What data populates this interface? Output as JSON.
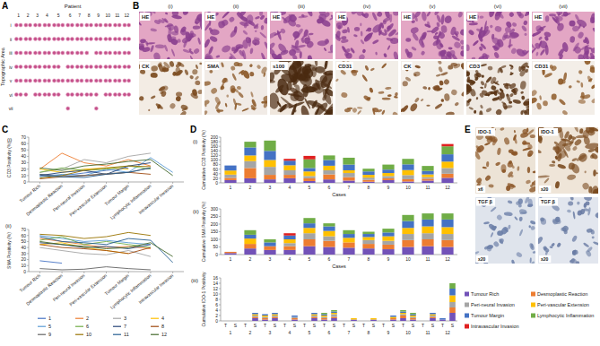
{
  "panel_labels": [
    "A",
    "B",
    "C",
    "D",
    "E"
  ],
  "tma": {
    "title": "Patient",
    "row_axis": "Topographic Area",
    "patients": [
      "1",
      "2",
      "3",
      "4",
      "5",
      "6",
      "7",
      "8",
      "9",
      "10",
      "11",
      "12"
    ],
    "rows": [
      "i",
      "ii",
      "iii",
      "iv",
      "v",
      "vi",
      "vii"
    ],
    "cores": [
      [
        2,
        2,
        2,
        2,
        3,
        2,
        2,
        2,
        2,
        2,
        2,
        2
      ],
      [
        2,
        2,
        2,
        2,
        3,
        2,
        2,
        2,
        2,
        2,
        2,
        2
      ],
      [
        2,
        2,
        2,
        2,
        3,
        2,
        2,
        1,
        2,
        2,
        2,
        2
      ],
      [
        2,
        2,
        2,
        2,
        2,
        2,
        2,
        2,
        2,
        2,
        2,
        2
      ],
      [
        2,
        2,
        2,
        2,
        3,
        2,
        2,
        2,
        2,
        2,
        2,
        2
      ],
      [
        2,
        1,
        2,
        2,
        2,
        2,
        2,
        2,
        1,
        2,
        2,
        2
      ],
      [
        0,
        0,
        0,
        0,
        0,
        1,
        0,
        0,
        1,
        0,
        0,
        0
      ]
    ]
  },
  "histology": [
    {
      "label": "(i)",
      "top": "HE",
      "bottom": "CK"
    },
    {
      "label": "(ii)",
      "top": "HE",
      "bottom": "SMA"
    },
    {
      "label": "(iii)",
      "top": "HE",
      "bottom": "s100"
    },
    {
      "label": "(iv)",
      "top": "HE",
      "bottom": "CD31"
    },
    {
      "label": "(v)",
      "top": "HE",
      "bottom": "CK"
    },
    {
      "label": "(vi)",
      "top": "HE",
      "bottom": "CD3"
    },
    {
      "label": "(vii)",
      "top": "HE",
      "bottom": "CD31"
    }
  ],
  "chart_data": [
    {
      "type": "line",
      "subtitle": "(i)",
      "y_label": "CD3 Positivity (%)",
      "categories": [
        "Tumour Rich",
        "Desmoplastic Reaction",
        "Peri-neural Invasion",
        "Peri-vascular Extension",
        "Tumour Margin",
        "Lymphocytic Inflammation",
        "Intravascular Invasion"
      ],
      "ylim": [
        0,
        70
      ],
      "yticks": [
        0,
        10,
        20,
        30,
        40,
        50,
        60,
        70
      ],
      "grid": false,
      "series": [
        {
          "color": "#4472c4",
          "values": [
            12,
            10,
            14,
            18,
            22,
            null,
            null
          ]
        },
        {
          "color": "#ed7d31",
          "values": [
            20,
            45,
            30,
            25,
            35,
            25,
            null
          ]
        },
        {
          "color": "#a5a5a5",
          "values": [
            15,
            20,
            35,
            30,
            40,
            45,
            null
          ]
        },
        {
          "color": "#ffc000",
          "values": [
            20,
            15,
            20,
            22,
            20,
            null,
            8
          ]
        },
        {
          "color": "#5b9bd5",
          "values": [
            8,
            12,
            10,
            20,
            15,
            38,
            15
          ]
        },
        {
          "color": "#70ad47",
          "values": [
            15,
            22,
            18,
            20,
            25,
            20,
            null
          ]
        },
        {
          "color": "#264478",
          "values": [
            10,
            15,
            18,
            12,
            25,
            30,
            null
          ]
        },
        {
          "color": "#9e480e",
          "values": [
            5,
            8,
            10,
            12,
            15,
            12,
            null
          ]
        },
        {
          "color": "#636363",
          "values": [
            12,
            8,
            10,
            13,
            15,
            22,
            null
          ]
        },
        {
          "color": "#997300",
          "values": [
            6,
            10,
            18,
            22,
            25,
            24,
            null
          ]
        },
        {
          "color": "#255e91",
          "values": [
            10,
            8,
            7,
            12,
            15,
            22,
            null
          ]
        },
        {
          "color": "#43682b",
          "values": [
            22,
            18,
            25,
            28,
            32,
            35,
            10
          ]
        }
      ]
    },
    {
      "type": "line",
      "subtitle": "(ii)",
      "y_label": "SMA Positivity (%)",
      "categories": [
        "Tumour Rich",
        "Desmoplastic Reaction",
        "Peri-neural Invasion",
        "Peri-vascular Extension",
        "Tumour Margin",
        "Lymphocytic Inflammation",
        "Intravascular Invasion"
      ],
      "ylim": [
        0,
        70
      ],
      "yticks": [
        0,
        10,
        20,
        30,
        40,
        50,
        60,
        70
      ],
      "grid": false,
      "legend": "bottom",
      "series": [
        {
          "name": "1",
          "color": "#4472c4",
          "values": [
            18,
            14,
            null,
            null,
            null,
            null,
            null
          ]
        },
        {
          "name": "2",
          "color": "#ed7d31",
          "values": [
            55,
            50,
            45,
            40,
            42,
            38,
            null
          ]
        },
        {
          "name": "3",
          "color": "#a5a5a5",
          "values": [
            40,
            35,
            30,
            28,
            35,
            25,
            null
          ]
        },
        {
          "name": "4",
          "color": "#ffc000",
          "values": [
            45,
            48,
            40,
            35,
            30,
            null,
            null
          ]
        },
        {
          "name": "5",
          "color": "#5b9bd5",
          "values": [
            60,
            55,
            50,
            52,
            48,
            45,
            null
          ]
        },
        {
          "name": "6",
          "color": "#70ad47",
          "values": [
            52,
            58,
            45,
            50,
            45,
            40,
            null
          ]
        },
        {
          "name": "7",
          "color": "#264478",
          "values": [
            48,
            45,
            40,
            42,
            38,
            45,
            null
          ]
        },
        {
          "name": "8",
          "color": "#9e480e",
          "values": [
            45,
            40,
            38,
            35,
            30,
            40,
            null
          ]
        },
        {
          "name": "9",
          "color": "#636363",
          "values": [
            5,
            3,
            4,
            8,
            5,
            3,
            null
          ]
        },
        {
          "name": "10",
          "color": "#997300",
          "values": [
            62,
            60,
            55,
            58,
            65,
            60,
            null
          ]
        },
        {
          "name": "11",
          "color": "#255e91",
          "values": [
            58,
            50,
            48,
            45,
            55,
            52,
            15
          ]
        },
        {
          "name": "12",
          "color": "#43682b",
          "values": [
            50,
            45,
            42,
            38,
            40,
            48,
            25
          ]
        }
      ]
    },
    {
      "type": "bar",
      "stacked": true,
      "subtitle": "(i)",
      "y_label": "Cumulative CD3 Positivity (%)",
      "x_label": "Cases",
      "categories": [
        "1",
        "2",
        "3",
        "4",
        "5",
        "6",
        "7",
        "8",
        "9",
        "10",
        "11",
        "12"
      ],
      "ylim": [
        0,
        200
      ],
      "yticks": [
        0,
        20,
        40,
        60,
        80,
        100,
        120,
        140,
        160,
        180,
        200
      ],
      "grid": false,
      "series": [
        {
          "color": "#7252b8",
          "values": [
            12,
            20,
            15,
            20,
            8,
            15,
            10,
            5,
            12,
            6,
            10,
            22
          ]
        },
        {
          "color": "#ed7d31",
          "values": [
            10,
            45,
            20,
            15,
            12,
            22,
            15,
            8,
            8,
            10,
            8,
            18
          ]
        },
        {
          "color": "#a5a5a5",
          "values": [
            14,
            30,
            35,
            20,
            10,
            18,
            18,
            10,
            10,
            18,
            7,
            25
          ]
        },
        {
          "color": "#ffc000",
          "values": [
            18,
            25,
            30,
            22,
            20,
            20,
            12,
            12,
            13,
            22,
            12,
            28
          ]
        },
        {
          "color": "#4472c4",
          "values": [
            22,
            35,
            40,
            20,
            15,
            25,
            25,
            15,
            15,
            25,
            15,
            32
          ]
        },
        {
          "color": "#70ad47",
          "values": [
            null,
            25,
            45,
            null,
            38,
            20,
            30,
            12,
            22,
            24,
            22,
            35
          ]
        },
        {
          "color": "#e02020",
          "values": [
            null,
            null,
            null,
            8,
            15,
            null,
            null,
            null,
            null,
            null,
            null,
            10
          ]
        }
      ]
    },
    {
      "type": "bar",
      "stacked": true,
      "subtitle": "(ii)",
      "y_label": "Cumulative SMA Positivity (%)",
      "x_label": "Cases",
      "categories": [
        "1",
        "2",
        "3",
        "4",
        "5",
        "6",
        "7",
        "8",
        "9",
        "10",
        "11",
        "12"
      ],
      "ylim": [
        0,
        300
      ],
      "yticks": [
        0,
        50,
        100,
        150,
        200,
        250,
        300
      ],
      "grid": false,
      "series": [
        {
          "color": "#7252b8",
          "values": [
            10,
            40,
            30,
            30,
            55,
            50,
            45,
            40,
            35,
            50,
            55,
            50
          ]
        },
        {
          "color": "#ed7d31",
          "values": [
            8,
            30,
            25,
            25,
            45,
            40,
            35,
            30,
            30,
            45,
            45,
            45
          ]
        },
        {
          "color": "#a5a5a5",
          "values": [
            null,
            null,
            null,
            20,
            40,
            30,
            null,
            25,
            25,
            40,
            40,
            40
          ]
        },
        {
          "color": "#ffc000",
          "values": [
            null,
            35,
            null,
            25,
            35,
            35,
            30,
            20,
            30,
            40,
            45,
            45
          ]
        },
        {
          "color": "#4472c4",
          "values": [
            null,
            25,
            25,
            25,
            30,
            30,
            25,
            20,
            25,
            45,
            45,
            50
          ]
        },
        {
          "color": "#70ad47",
          "values": [
            null,
            30,
            20,
            null,
            35,
            20,
            25,
            15,
            25,
            40,
            40,
            40
          ]
        },
        {
          "color": "#e02020",
          "values": [
            null,
            null,
            null,
            15,
            null,
            null,
            null,
            null,
            null,
            null,
            null,
            null
          ]
        }
      ]
    },
    {
      "type": "bar",
      "stacked": true,
      "subtitle": "(iii)",
      "y_label": "Cumulative IDO-1 Positivity",
      "categories": [
        "T",
        "S",
        "T",
        "S",
        "T",
        "S",
        "T",
        "S",
        "T",
        "S",
        "T",
        "S",
        "T",
        "S",
        "T",
        "S",
        "T",
        "S",
        "T",
        "S",
        "T",
        "S",
        "T",
        "S"
      ],
      "category_groups": [
        "1",
        "2",
        "3",
        "4",
        "5",
        "6",
        "7",
        "8",
        "9",
        "10",
        "11",
        "12"
      ],
      "ylim": [
        0,
        16
      ],
      "yticks": [
        0,
        2,
        4,
        6,
        8,
        10,
        12,
        14,
        16
      ],
      "grid": false,
      "legend": "bottom-right",
      "series": [
        {
          "name": "Tumour Rich",
          "color": "#7252b8",
          "values": [
            0,
            0,
            0,
            1,
            0.5,
            1,
            0,
            0.5,
            0,
            1,
            0.5,
            1,
            0,
            0.5,
            0,
            0.5,
            0,
            0.5,
            1,
            0.5,
            0,
            1,
            0.5,
            3
          ]
        },
        {
          "name": "Desmoplastic Reaction",
          "color": "#ed7d31",
          "values": [
            0,
            0,
            0,
            0.5,
            0.5,
            0.5,
            0,
            0.5,
            0,
            0.5,
            0.5,
            0.5,
            0,
            0,
            0,
            0,
            0,
            0.5,
            1,
            0.5,
            0,
            0.5,
            0,
            2
          ]
        },
        {
          "name": "Peri-neural Invasion",
          "color": "#a5a5a5",
          "values": [
            0,
            0,
            0,
            0.5,
            0.5,
            0.5,
            0,
            0.5,
            0,
            0.5,
            0.5,
            1,
            0,
            0,
            0,
            0,
            0,
            0,
            0.5,
            0.5,
            0,
            0.5,
            0,
            2
          ]
        },
        {
          "name": "Peri-vascular Extension",
          "color": "#ffc000",
          "values": [
            0,
            0,
            0,
            0.5,
            0.5,
            0.5,
            0,
            0,
            0,
            0.5,
            0.5,
            0.5,
            0,
            0.5,
            0,
            0.5,
            0,
            0.5,
            0.5,
            0.5,
            0,
            0.5,
            0,
            2.5
          ]
        },
        {
          "name": "Tumour Margin",
          "color": "#4472c4",
          "values": [
            0,
            0,
            0,
            0.5,
            0.5,
            0.5,
            0,
            0.5,
            0,
            0.5,
            0.5,
            0.5,
            0,
            0,
            0,
            0,
            0,
            0.5,
            0.5,
            0.5,
            0,
            0.5,
            0.5,
            2.5
          ]
        },
        {
          "name": "Lymphocytic Inflammation",
          "color": "#70ad47",
          "values": [
            0,
            0,
            0,
            0,
            0,
            0,
            0,
            0,
            0,
            0,
            0.5,
            0.5,
            0,
            0,
            0,
            0,
            0,
            0,
            0.5,
            0.5,
            0,
            0,
            0,
            2
          ]
        },
        {
          "name": "Intravascular Invasion",
          "color": "#e02020",
          "values": [
            0,
            0,
            0,
            0,
            0,
            0,
            0,
            0,
            0,
            0,
            0,
            0,
            0,
            0,
            0,
            0,
            0,
            0,
            0,
            0,
            0,
            0,
            0,
            0
          ]
        }
      ]
    }
  ],
  "ihc": [
    {
      "stain": "IDO-1",
      "magnification": "x6"
    },
    {
      "stain": "IDO-1",
      "magnification": "x20"
    },
    {
      "stain": "TGF β",
      "magnification": "x20"
    },
    {
      "stain": "TGF β",
      "magnification": "x20"
    }
  ]
}
